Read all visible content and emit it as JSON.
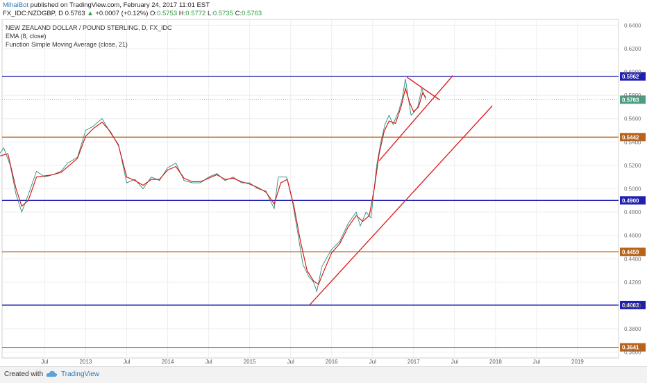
{
  "header": {
    "author": "MihaiBot",
    "published": "published on TradingView.com, February 24, 2017 11:01 EST",
    "symbol": "FX_IDC:NZDGBP, D",
    "last": "0.5763",
    "change_arrow": "▲",
    "change": "+0.0007 (+0.12%)",
    "ohlc": {
      "o_label": "O:",
      "o": "0.5753",
      "h_label": "H:",
      "h": "0.5772",
      "l_label": "L:",
      "l": "0.5735",
      "c_label": "C:",
      "c": "0.5763"
    }
  },
  "legend": {
    "line1": "NEW ZEALAND DOLLAR / POUND STERLING, D, FX_IDC",
    "line2": "EMA (8, close)",
    "line3": "Function Simple Moving Average (close, 21)"
  },
  "footer": {
    "created": "Created with",
    "brand": "TradingView"
  },
  "colors": {
    "price": "#2e8b7a",
    "ema": "#d61a1a",
    "sma": "#e06666",
    "blue_level": "#2020b0",
    "orange_level": "#b8621a",
    "trend": "#e01f1f",
    "last_price": "#4d9e80"
  },
  "chart_data": {
    "type": "line",
    "series": [
      {
        "values": [
          [
            2011.95,
            0.53
          ],
          [
            2012.0,
            0.535
          ],
          [
            2012.08,
            0.52
          ],
          [
            2012.15,
            0.495
          ],
          [
            2012.22,
            0.48
          ],
          [
            2012.3,
            0.495
          ],
          [
            2012.4,
            0.515
          ],
          [
            2012.5,
            0.51
          ],
          [
            2012.6,
            0.512
          ],
          [
            2012.7,
            0.515
          ],
          [
            2012.78,
            0.522
          ],
          [
            2012.9,
            0.527
          ],
          [
            2013.0,
            0.55
          ],
          [
            2013.08,
            0.553
          ],
          [
            2013.2,
            0.56
          ],
          [
            2013.3,
            0.548
          ],
          [
            2013.4,
            0.538
          ],
          [
            2013.5,
            0.505
          ],
          [
            2013.6,
            0.508
          ],
          [
            2013.7,
            0.5
          ],
          [
            2013.8,
            0.51
          ],
          [
            2013.9,
            0.507
          ],
          [
            2014.0,
            0.518
          ],
          [
            2014.1,
            0.522
          ],
          [
            2014.2,
            0.507
          ],
          [
            2014.3,
            0.505
          ],
          [
            2014.4,
            0.505
          ],
          [
            2014.5,
            0.51
          ],
          [
            2014.6,
            0.513
          ],
          [
            2014.7,
            0.507
          ],
          [
            2014.8,
            0.51
          ],
          [
            2014.9,
            0.505
          ],
          [
            2015.0,
            0.505
          ],
          [
            2015.1,
            0.5
          ],
          [
            2015.2,
            0.498
          ],
          [
            2015.25,
            0.49
          ],
          [
            2015.3,
            0.483
          ],
          [
            2015.35,
            0.51
          ],
          [
            2015.45,
            0.51
          ],
          [
            2015.52,
            0.49
          ],
          [
            2015.58,
            0.465
          ],
          [
            2015.65,
            0.435
          ],
          [
            2015.72,
            0.425
          ],
          [
            2015.78,
            0.42
          ],
          [
            2015.82,
            0.412
          ],
          [
            2015.88,
            0.433
          ],
          [
            2015.95,
            0.442
          ],
          [
            2016.0,
            0.448
          ],
          [
            2016.1,
            0.455
          ],
          [
            2016.2,
            0.47
          ],
          [
            2016.3,
            0.48
          ],
          [
            2016.35,
            0.468
          ],
          [
            2016.42,
            0.48
          ],
          [
            2016.48,
            0.475
          ],
          [
            2016.55,
            0.52
          ],
          [
            2016.6,
            0.54
          ],
          [
            2016.65,
            0.555
          ],
          [
            2016.7,
            0.563
          ],
          [
            2016.75,
            0.555
          ],
          [
            2016.82,
            0.567
          ],
          [
            2016.86,
            0.577
          ],
          [
            2016.9,
            0.594
          ],
          [
            2016.93,
            0.58
          ],
          [
            2016.97,
            0.563
          ],
          [
            2017.0,
            0.565
          ],
          [
            2017.05,
            0.57
          ],
          [
            2017.1,
            0.586
          ],
          [
            2017.13,
            0.58
          ],
          [
            2017.15,
            0.5763
          ]
        ]
      },
      {
        "name": "EMA (8, close)",
        "values": [
          [
            2011.95,
            0.528
          ],
          [
            2012.05,
            0.53
          ],
          [
            2012.15,
            0.5
          ],
          [
            2012.22,
            0.485
          ],
          [
            2012.3,
            0.49
          ],
          [
            2012.4,
            0.51
          ],
          [
            2012.5,
            0.511
          ],
          [
            2012.6,
            0.512
          ],
          [
            2012.7,
            0.514
          ],
          [
            2012.8,
            0.52
          ],
          [
            2012.9,
            0.526
          ],
          [
            2013.0,
            0.545
          ],
          [
            2013.1,
            0.552
          ],
          [
            2013.2,
            0.557
          ],
          [
            2013.3,
            0.549
          ],
          [
            2013.4,
            0.537
          ],
          [
            2013.5,
            0.51
          ],
          [
            2013.6,
            0.507
          ],
          [
            2013.7,
            0.503
          ],
          [
            2013.8,
            0.508
          ],
          [
            2013.9,
            0.508
          ],
          [
            2014.0,
            0.516
          ],
          [
            2014.1,
            0.519
          ],
          [
            2014.2,
            0.509
          ],
          [
            2014.3,
            0.506
          ],
          [
            2014.4,
            0.506
          ],
          [
            2014.5,
            0.509
          ],
          [
            2014.6,
            0.512
          ],
          [
            2014.7,
            0.508
          ],
          [
            2014.8,
            0.509
          ],
          [
            2014.9,
            0.506
          ],
          [
            2015.0,
            0.504
          ],
          [
            2015.1,
            0.501
          ],
          [
            2015.2,
            0.497
          ],
          [
            2015.3,
            0.487
          ],
          [
            2015.38,
            0.505
          ],
          [
            2015.46,
            0.508
          ],
          [
            2015.54,
            0.485
          ],
          [
            2015.62,
            0.455
          ],
          [
            2015.7,
            0.43
          ],
          [
            2015.78,
            0.421
          ],
          [
            2015.84,
            0.418
          ],
          [
            2015.92,
            0.432
          ],
          [
            2016.0,
            0.445
          ],
          [
            2016.1,
            0.453
          ],
          [
            2016.2,
            0.467
          ],
          [
            2016.3,
            0.477
          ],
          [
            2016.38,
            0.472
          ],
          [
            2016.46,
            0.477
          ],
          [
            2016.52,
            0.5
          ],
          [
            2016.58,
            0.53
          ],
          [
            2016.64,
            0.549
          ],
          [
            2016.7,
            0.558
          ],
          [
            2016.78,
            0.556
          ],
          [
            2016.85,
            0.571
          ],
          [
            2016.9,
            0.586
          ],
          [
            2016.95,
            0.574
          ],
          [
            2017.0,
            0.566
          ],
          [
            2017.06,
            0.57
          ],
          [
            2017.11,
            0.582
          ],
          [
            2017.15,
            0.578
          ]
        ]
      }
    ],
    "levels": [
      {
        "value": 0.5962,
        "label": "0.5962",
        "color": "blue"
      },
      {
        "value": 0.5442,
        "label": "0.5442",
        "color": "orange"
      },
      {
        "value": 0.49,
        "label": "0.4900",
        "color": "blue"
      },
      {
        "value": 0.4459,
        "label": "0.4459",
        "color": "orange"
      },
      {
        "value": 0.4003,
        "label": "0.4003",
        "color": "blue"
      },
      {
        "value": 0.3641,
        "label": "0.3641",
        "color": "orange"
      }
    ],
    "last_price": {
      "value": 0.5763,
      "label": "0.5763"
    },
    "trendlines": [
      {
        "x1": 2015.73,
        "y1": 0.4003,
        "x2": 2017.96,
        "y2": 0.571
      },
      {
        "x1": 2016.58,
        "y1": 0.524,
        "x2": 2017.48,
        "y2": 0.597
      },
      {
        "x1": 2016.92,
        "y1": 0.5955,
        "x2": 2017.32,
        "y2": 0.576
      }
    ],
    "y_ticks": [
      "0.6400",
      "0.6200",
      "0.6000",
      "0.5800",
      "0.5600",
      "0.5400",
      "0.5200",
      "0.5000",
      "0.4800",
      "0.4600",
      "0.4400",
      "0.4200",
      "0.4000",
      "0.3800",
      "0.3600"
    ],
    "y_tick_values": [
      0.64,
      0.62,
      0.6,
      0.58,
      0.56,
      0.54,
      0.52,
      0.5,
      0.48,
      0.46,
      0.44,
      0.42,
      0.4,
      0.38,
      0.36
    ],
    "x_ticks": [
      "Jul",
      "2013",
      "Jul",
      "2014",
      "Jul",
      "2015",
      "Jul",
      "2016",
      "Jul",
      "2017",
      "Jul",
      "2018",
      "Jul",
      "2019"
    ],
    "x_tick_values": [
      2012.5,
      2013.0,
      2013.5,
      2014.0,
      2014.5,
      2015.0,
      2015.5,
      2016.0,
      2016.5,
      2017.0,
      2017.5,
      2018.0,
      2018.5,
      2019.0
    ],
    "ylim": [
      0.355,
      0.645
    ],
    "xlim": [
      2011.98,
      2019.5
    ],
    "grid": true
  }
}
